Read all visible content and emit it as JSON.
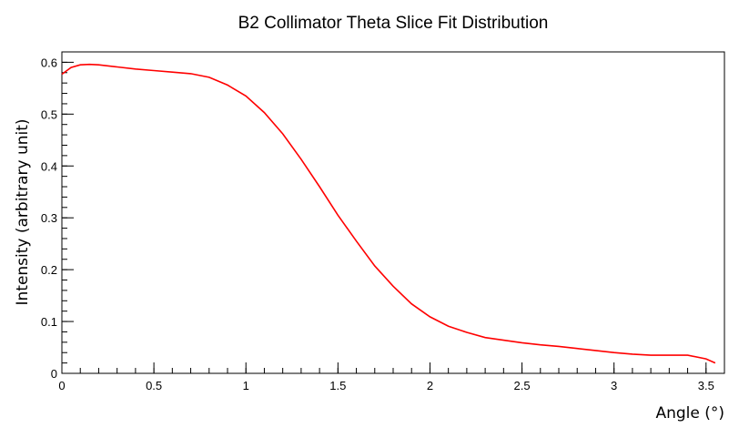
{
  "chart_data": {
    "type": "line",
    "title": "B2 Collimator Theta Slice Fit Distribution",
    "xlabel": "Angle (°)",
    "ylabel": "Intensity (arbitrary unit)",
    "xlim": [
      0,
      3.6
    ],
    "ylim": [
      0,
      0.62
    ],
    "x_ticks": [
      0,
      0.5,
      1,
      1.5,
      2,
      2.5,
      3,
      3.5
    ],
    "x_tick_labels": [
      "0",
      "0.5",
      "1",
      "1.5",
      "2",
      "2.5",
      "3",
      "3.5"
    ],
    "y_ticks": [
      0,
      0.1,
      0.2,
      0.3,
      0.4,
      0.5,
      0.6
    ],
    "y_tick_labels": [
      "0",
      "0.1",
      "0.2",
      "0.3",
      "0.4",
      "0.5",
      "0.6"
    ],
    "grid": false,
    "legend": "none",
    "series": [
      {
        "color": "#ff0000",
        "x": [
          0.0,
          0.05,
          0.1,
          0.15,
          0.2,
          0.3,
          0.4,
          0.5,
          0.6,
          0.7,
          0.8,
          0.9,
          1.0,
          1.1,
          1.2,
          1.3,
          1.4,
          1.5,
          1.6,
          1.7,
          1.8,
          1.9,
          2.0,
          2.1,
          2.2,
          2.3,
          2.4,
          2.5,
          2.6,
          2.7,
          2.8,
          2.9,
          3.0,
          3.1,
          3.2,
          3.3,
          3.4,
          3.5,
          3.55
        ],
        "values": [
          0.577,
          0.59,
          0.595,
          0.596,
          0.595,
          0.591,
          0.587,
          0.584,
          0.581,
          0.578,
          0.571,
          0.556,
          0.535,
          0.503,
          0.462,
          0.413,
          0.36,
          0.305,
          0.255,
          0.207,
          0.168,
          0.134,
          0.109,
          0.091,
          0.079,
          0.069,
          0.064,
          0.059,
          0.055,
          0.052,
          0.048,
          0.044,
          0.04,
          0.037,
          0.035,
          0.035,
          0.035,
          0.028,
          0.02
        ]
      }
    ]
  }
}
